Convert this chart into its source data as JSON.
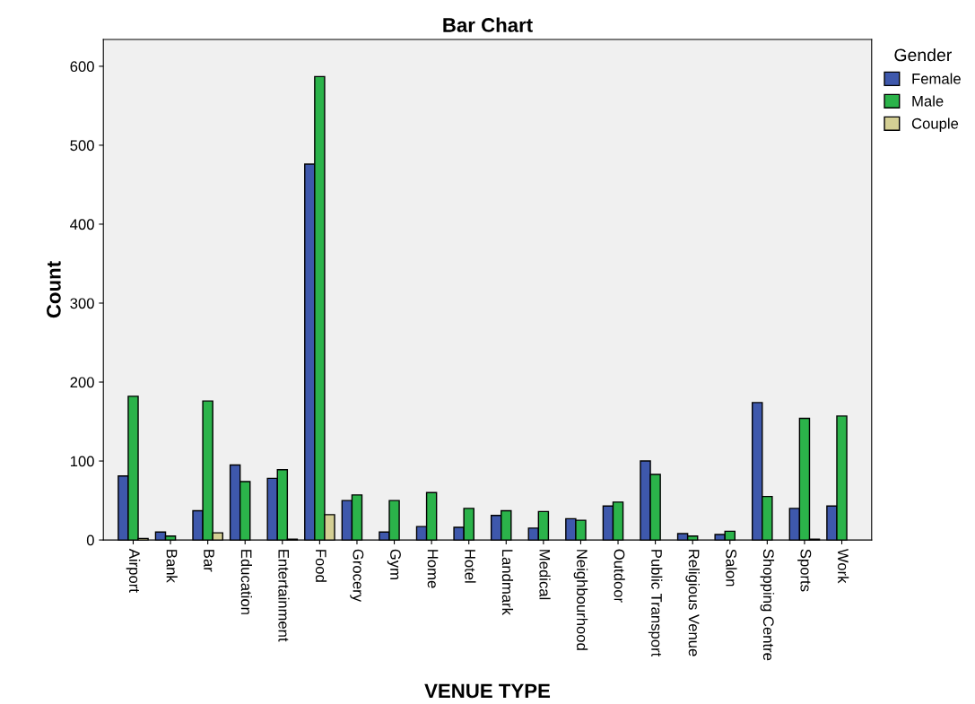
{
  "chart_data": {
    "type": "bar",
    "title": "Bar Chart",
    "xlabel": "VENUE TYPE",
    "ylabel": "Count",
    "legend_title": "Gender",
    "legend": "top right",
    "grid": false,
    "categories": [
      "Airport",
      "Bank",
      "Bar",
      "Education",
      "Entertainment",
      "Food",
      "Grocery",
      "Gym",
      "Home",
      "Hotel",
      "Landmark",
      "Medical",
      "Neighbourhood",
      "Outdoor",
      "Public Transport",
      "Religious Venue",
      "Salon",
      "Shopping Centre",
      "Sports",
      "Work"
    ],
    "series": [
      {
        "name": "Female",
        "color": "#3e58ac",
        "values": [
          81,
          10,
          37,
          95,
          78,
          476,
          50,
          10,
          17,
          16,
          31,
          15,
          27,
          43,
          100,
          8,
          7,
          174,
          40,
          43
        ]
      },
      {
        "name": "Male",
        "color": "#2bb34a",
        "values": [
          182,
          5,
          176,
          74,
          89,
          587,
          57,
          50,
          60,
          40,
          37,
          36,
          25,
          48,
          83,
          5,
          11,
          55,
          154,
          157
        ]
      },
      {
        "name": "Couple",
        "color": "#d4cf94",
        "values": [
          2,
          null,
          9,
          null,
          1,
          32,
          null,
          null,
          null,
          null,
          null,
          null,
          null,
          null,
          null,
          null,
          null,
          null,
          1,
          null
        ]
      }
    ],
    "ylim": [
      0,
      634
    ],
    "yticks": [
      0,
      100,
      200,
      300,
      400,
      500,
      600
    ]
  }
}
